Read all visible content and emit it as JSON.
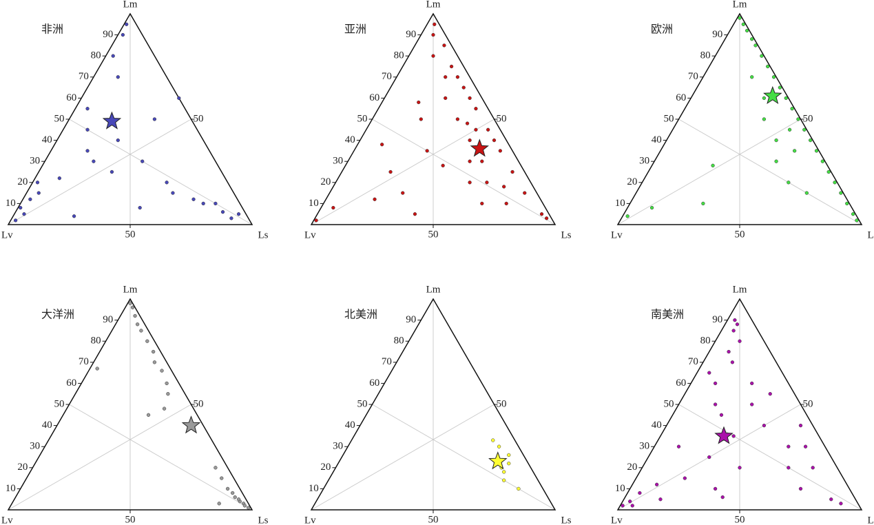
{
  "chart_data": [
    {
      "type": "ternary",
      "title": "非洲",
      "vertex_labels": {
        "top": "Lm",
        "left": "Lv",
        "right": "Ls"
      },
      "color": "#4848b8",
      "left_ticks": [
        10,
        20,
        30,
        40,
        50,
        60,
        70,
        80,
        90
      ],
      "bottom_ticks": [
        50
      ],
      "right_ticks": [
        50
      ],
      "star": {
        "lm": 49,
        "ls": 18
      },
      "points": {
        "lm": [
          2,
          5,
          8,
          12,
          15,
          20,
          3,
          6,
          10,
          25,
          30,
          35,
          45,
          55,
          60,
          70,
          80,
          90,
          95,
          40,
          20,
          10,
          5,
          15,
          30,
          50,
          22,
          8,
          4,
          12
        ],
        "ls": [
          2,
          4,
          1,
          3,
          5,
          2,
          90,
          85,
          80,
          30,
          40,
          15,
          10,
          5,
          40,
          10,
          3,
          2,
          1,
          25,
          55,
          75,
          92,
          60,
          20,
          35,
          10,
          50,
          25,
          70
        ]
      }
    },
    {
      "type": "ternary",
      "title": "亚洲",
      "vertex_labels": {
        "top": "Lm",
        "left": "Lv",
        "right": "Ls"
      },
      "color": "#c81414",
      "left_ticks": [
        10,
        20,
        30,
        40,
        50,
        60,
        70,
        80,
        90
      ],
      "bottom_ticks": [
        50
      ],
      "right_ticks": [
        50
      ],
      "star": {
        "lm": 36,
        "ls": 51
      },
      "points": {
        "lm": [
          95,
          85,
          75,
          65,
          55,
          45,
          35,
          25,
          15,
          5,
          90,
          80,
          70,
          60,
          50,
          40,
          30,
          20,
          10,
          3,
          60,
          45,
          30,
          20,
          10,
          50,
          35,
          25,
          15,
          5,
          70,
          40,
          2,
          8,
          12,
          38,
          28,
          48,
          18,
          58
        ],
        "ls": [
          3,
          12,
          20,
          30,
          40,
          50,
          60,
          70,
          80,
          92,
          5,
          10,
          20,
          25,
          35,
          45,
          55,
          62,
          75,
          95,
          35,
          45,
          50,
          55,
          65,
          20,
          30,
          20,
          30,
          40,
          25,
          55,
          1,
          5,
          20,
          10,
          40,
          40,
          70,
          15
        ]
      }
    },
    {
      "type": "ternary",
      "title": "欧洲",
      "vertex_labels": {
        "top": "Lm",
        "left": "Lv",
        "right": "Ls"
      },
      "color": "#44dd44",
      "left_ticks": [
        10,
        20,
        30,
        40,
        50,
        60,
        70,
        80,
        90
      ],
      "bottom_ticks": [
        50
      ],
      "right_ticks": [
        50
      ],
      "star": {
        "lm": 61,
        "ls": 33
      },
      "points": {
        "lm": [
          98,
          95,
          92,
          88,
          85,
          80,
          75,
          70,
          65,
          60,
          55,
          50,
          45,
          40,
          35,
          30,
          25,
          20,
          15,
          10,
          5,
          2,
          60,
          50,
          40,
          30,
          20,
          10,
          4,
          8,
          28,
          45,
          70,
          15,
          35
        ],
        "ls": [
          1,
          4,
          7,
          11,
          14,
          19,
          24,
          29,
          34,
          39,
          44,
          49,
          54,
          59,
          64,
          69,
          74,
          79,
          84,
          89,
          94,
          97,
          30,
          35,
          45,
          50,
          60,
          30,
          2,
          10,
          25,
          48,
          20,
          70,
          55
        ]
      }
    },
    {
      "type": "ternary",
      "title": "大洋洲",
      "vertex_labels": {
        "top": "Lm",
        "left": "Lv",
        "right": "Ls"
      },
      "color": "#999999",
      "left_ticks": [
        10,
        20,
        30,
        40,
        50,
        60,
        70,
        80,
        90
      ],
      "bottom_ticks": [
        50
      ],
      "right_ticks": [
        50
      ],
      "star": {
        "lm": 40,
        "ls": 55
      },
      "points": {
        "lm": [
          98,
          96,
          92,
          88,
          85,
          80,
          75,
          70,
          66,
          60,
          55,
          48,
          45,
          20,
          15,
          10,
          8,
          6,
          4,
          3,
          2,
          1,
          5,
          3,
          67
        ],
        "ls": [
          1,
          3,
          6,
          9,
          12,
          17,
          22,
          25,
          30,
          35,
          38,
          40,
          35,
          75,
          80,
          85,
          88,
          90,
          93,
          95,
          96,
          98,
          92,
          85,
          3
        ]
      }
    },
    {
      "type": "ternary",
      "title": "北美洲",
      "vertex_labels": {
        "top": "Lm",
        "left": "Lv",
        "right": "Ls"
      },
      "color": "#ffff33",
      "left_ticks": [
        10,
        20,
        30,
        40,
        50,
        60,
        70,
        80,
        90
      ],
      "bottom_ticks": [
        50
      ],
      "right_ticks": [
        50
      ],
      "star": {
        "lm": 23,
        "ls": 65
      },
      "points": {
        "lm": [
          33,
          30,
          26,
          22,
          18,
          14,
          10,
          20
        ],
        "ls": [
          58,
          62,
          68,
          70,
          70,
          72,
          80,
          68
        ]
      }
    },
    {
      "type": "ternary",
      "title": "南美洲",
      "vertex_labels": {
        "top": "Lm",
        "left": "Lv",
        "right": "Ls"
      },
      "color": "#aa11aa",
      "left_ticks": [
        10,
        20,
        30,
        40,
        50,
        60,
        70,
        80,
        90
      ],
      "bottom_ticks": [
        50
      ],
      "right_ticks": [
        50
      ],
      "star": {
        "lm": 35,
        "ls": 26
      },
      "points": {
        "lm": [
          90,
          85,
          80,
          75,
          70,
          65,
          60,
          50,
          40,
          30,
          20,
          10,
          5,
          3,
          2,
          15,
          25,
          35,
          45,
          55,
          12,
          8,
          5,
          20,
          30,
          40,
          10,
          20,
          30,
          6,
          88,
          2,
          4,
          50,
          60
        ],
        "ls": [
          3,
          5,
          10,
          8,
          12,
          5,
          25,
          30,
          40,
          55,
          60,
          70,
          85,
          90,
          5,
          20,
          25,
          30,
          20,
          35,
          10,
          5,
          15,
          40,
          10,
          55,
          35,
          70,
          62,
          40,
          5,
          1,
          3,
          15,
          10
        ]
      }
    }
  ]
}
